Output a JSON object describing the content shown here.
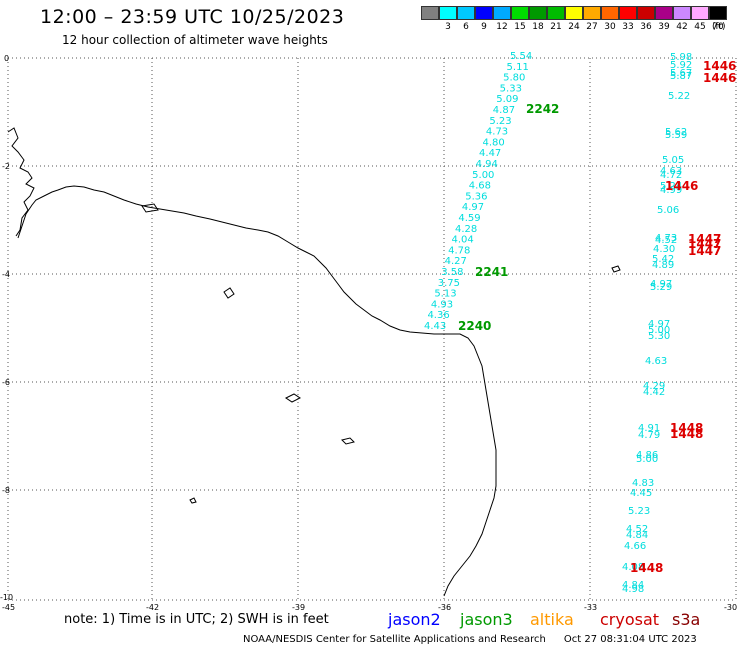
{
  "header": {
    "title": "12:00 – 23:59 UTC 10/25/2023",
    "subtitle": "12 hour collection of altimeter wave heights"
  },
  "legend": {
    "colors": [
      "#808080",
      "#00ffff",
      "#00c8ff",
      "#0000ff",
      "#00aaff",
      "#00dd00",
      "#009900",
      "#00bb00",
      "#ffff00",
      "#ffaa00",
      "#ff6600",
      "#ff0000",
      "#cc0000",
      "#aa0088",
      "#cc88ff",
      "#ffaaff",
      "#000000"
    ],
    "labels": [
      "",
      "3",
      "6",
      "9",
      "12",
      "15",
      "18",
      "21",
      "24",
      "27",
      "30",
      "33",
      "36",
      "39",
      "42",
      "45",
      "70"
    ],
    "unit": "(ft)"
  },
  "axes": {
    "x_ticks": [
      "-45",
      "-42",
      "-39",
      "-36",
      "-33",
      "-30"
    ],
    "y_ticks": [
      "0",
      "-2",
      "-4",
      "-6",
      "-8",
      "-10"
    ]
  },
  "passes": {
    "jason3_labels": [
      "2242",
      "2241",
      "2240"
    ],
    "cryosat_labels": [
      "1446",
      "1446",
      "1446",
      "1447",
      "1447",
      "1447",
      "1448",
      "1448",
      "1448"
    ]
  },
  "track_a_values": [
    "5.54",
    "5.11",
    "5.80",
    "5.33",
    "5.09",
    "4.87",
    "5.23",
    "4.73",
    "4.80",
    "4.47",
    "4.94",
    "5.00",
    "4.68",
    "5.36",
    "4.97",
    "4.59",
    "4.28",
    "4.04",
    "4.78",
    "4.27",
    "3.58",
    "3.75",
    "5.13",
    "4.93",
    "4.36",
    "4.43"
  ],
  "track_b_values": [
    "5.98",
    "5.92",
    "5.67",
    "5.87",
    "5.22",
    "5.62",
    "5.59",
    "5.05",
    "4.63",
    "4.72",
    "5.24",
    "4.99",
    "5.06",
    "4.73",
    "4.52",
    "4.30",
    "5.42",
    "4.89",
    "4.97",
    "5.29",
    "4.97",
    "5.00",
    "5.30",
    "4.63",
    "4.29",
    "4.42",
    "4.91",
    "4.79",
    "4.86",
    "5.00",
    "4.83",
    "4.45",
    "5.23",
    "4.52",
    "4.84",
    "4.66",
    "4.08",
    "4.84",
    "4.98"
  ],
  "footer": {
    "note": "note:  1) Time is in UTC;  2) SWH is in feet",
    "satellites": [
      "jason2",
      "jason3",
      "altika",
      "cryosat",
      "s3a"
    ],
    "sat_colors": [
      "#0000ff",
      "#009900",
      "#ff9900",
      "#cc0000",
      "#880000"
    ],
    "credit": "NOAA/NESDIS Center for Satellite Applications and Research",
    "timestamp": "Oct 27 08:31:04 UTC 2023"
  }
}
